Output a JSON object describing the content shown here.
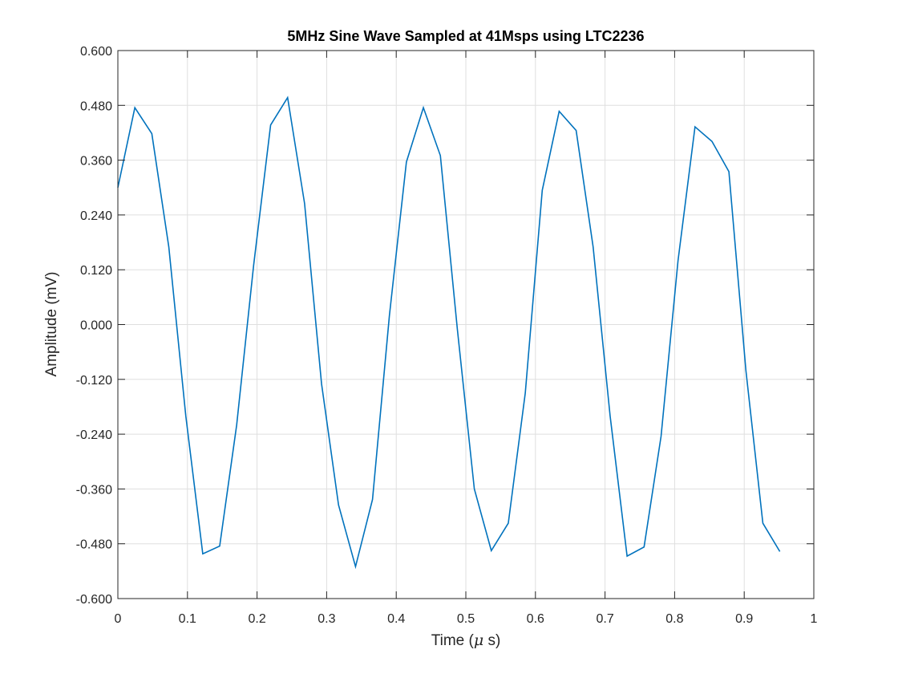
{
  "chart_data": {
    "type": "line",
    "title": "5MHz Sine Wave Sampled at 41Msps using LTC2236",
    "xlabel": "Time ($\\mu$ s)",
    "ylabel": "Amplitude (mV)",
    "xlim": [
      0,
      1
    ],
    "ylim": [
      -0.6,
      0.6
    ],
    "xticks": [
      "0",
      "0.1",
      "0.2",
      "0.3",
      "0.4",
      "0.5",
      "0.6",
      "0.7",
      "0.8",
      "0.9",
      "1"
    ],
    "yticks": [
      "-0.600",
      "-0.480",
      "-0.360",
      "-0.240",
      "-0.120",
      "0.000",
      "0.120",
      "0.240",
      "0.360",
      "0.480",
      "0.600"
    ],
    "grid": true,
    "series": [
      {
        "color": "#0072BD",
        "x": [
          0,
          0.0244,
          0.0488,
          0.0732,
          0.0976,
          0.122,
          0.1463,
          0.1707,
          0.1951,
          0.2195,
          0.2439,
          0.2683,
          0.2927,
          0.3171,
          0.3415,
          0.3659,
          0.3902,
          0.4146,
          0.439,
          0.4634,
          0.4878,
          0.5122,
          0.5366,
          0.561,
          0.5854,
          0.6098,
          0.6341,
          0.6585,
          0.6829,
          0.7073,
          0.7317,
          0.7561,
          0.7805,
          0.8049,
          0.8293,
          0.8537,
          0.878,
          0.9024,
          0.9268,
          0.9512
        ],
        "y": [
          0.3,
          0.475,
          0.418,
          0.17,
          -0.2,
          -0.502,
          -0.485,
          -0.22,
          0.13,
          0.437,
          0.497,
          0.265,
          -0.13,
          -0.395,
          -0.53,
          -0.383,
          0.02,
          0.356,
          0.475,
          0.37,
          -0.01,
          -0.36,
          -0.495,
          -0.435,
          -0.15,
          0.294,
          0.467,
          0.425,
          0.17,
          -0.2,
          -0.507,
          -0.487,
          -0.245,
          0.14,
          0.433,
          0.401,
          0.335,
          -0.1,
          -0.435,
          -0.497
        ]
      }
    ]
  }
}
